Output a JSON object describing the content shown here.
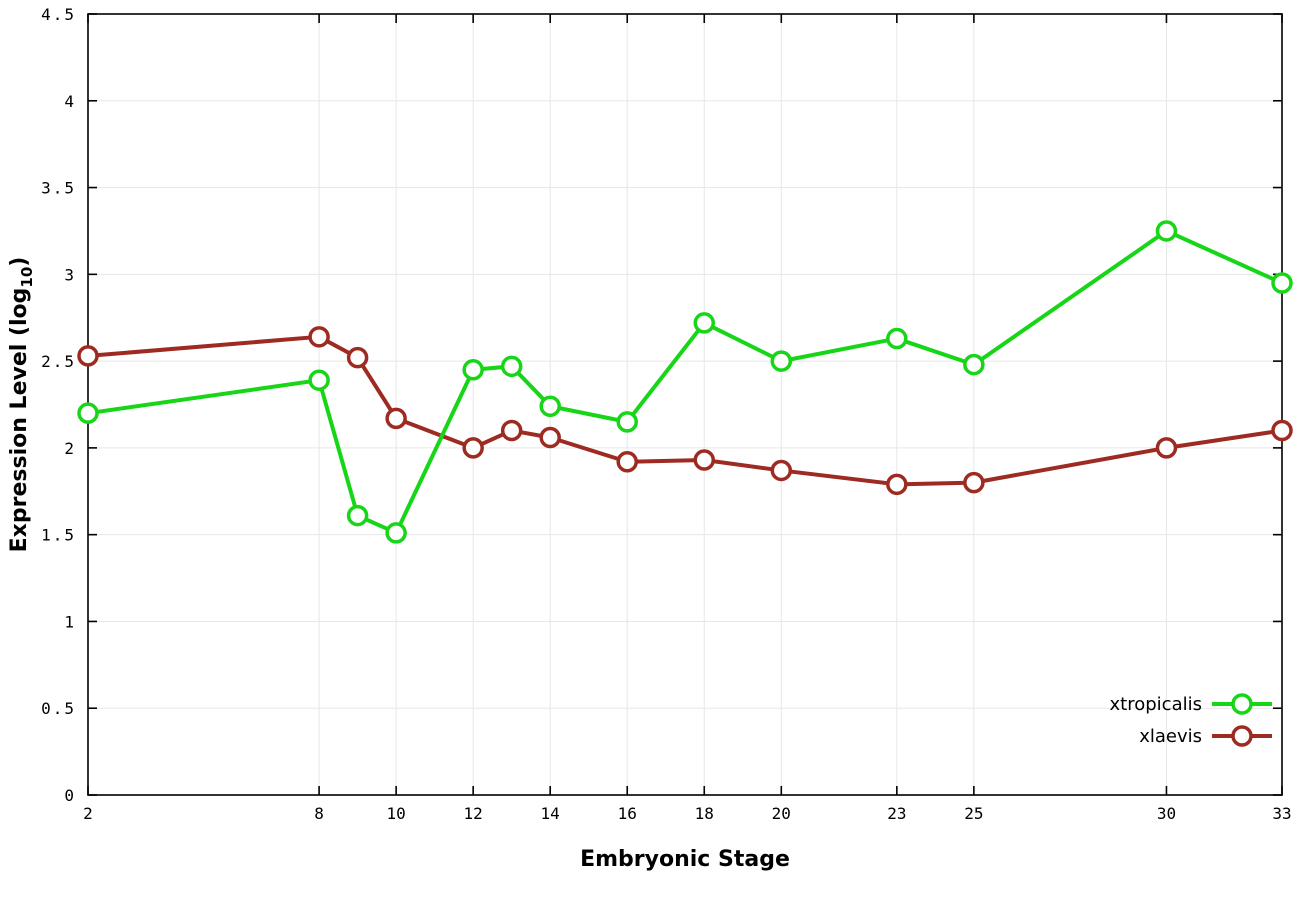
{
  "chart_data": {
    "type": "line",
    "title": "",
    "xlabel": "Embryonic Stage",
    "ylabel_parts": {
      "pre": "Expression Level (log",
      "sub": "10",
      "post": ")"
    },
    "x": [
      2,
      8,
      9,
      10,
      12,
      13,
      14,
      16,
      18,
      20,
      23,
      25,
      30,
      33
    ],
    "x_ticks": [
      2,
      8,
      10,
      12,
      14,
      16,
      18,
      20,
      23,
      25,
      30,
      33
    ],
    "y_ticks": [
      0,
      0.5,
      1,
      1.5,
      2,
      2.5,
      3,
      3.5,
      4,
      4.5
    ],
    "y_tick_labels": [
      "0",
      "0.5",
      "1",
      "1.5",
      "2",
      "2.5",
      "3",
      "3.5",
      "4",
      "4.5"
    ],
    "xlim": [
      2,
      33
    ],
    "ylim": [
      0,
      4.5
    ],
    "grid": true,
    "legend_position": "bottom-right",
    "series": [
      {
        "name": "xtropicalis",
        "color": "#17d517",
        "values": [
          2.2,
          2.39,
          1.61,
          1.51,
          2.45,
          2.47,
          2.24,
          2.15,
          2.72,
          2.5,
          2.63,
          2.48,
          3.25,
          2.95
        ]
      },
      {
        "name": "xlaevis",
        "color": "#9e2b22",
        "values": [
          2.53,
          2.64,
          2.52,
          2.17,
          2.0,
          2.1,
          2.06,
          1.92,
          1.93,
          1.87,
          1.79,
          1.8,
          2.0,
          2.1
        ]
      }
    ]
  },
  "style_colors": {
    "grid": "#e7e7e7",
    "axis": "#000000",
    "tick_text": "#000000",
    "background": "#ffffff"
  }
}
